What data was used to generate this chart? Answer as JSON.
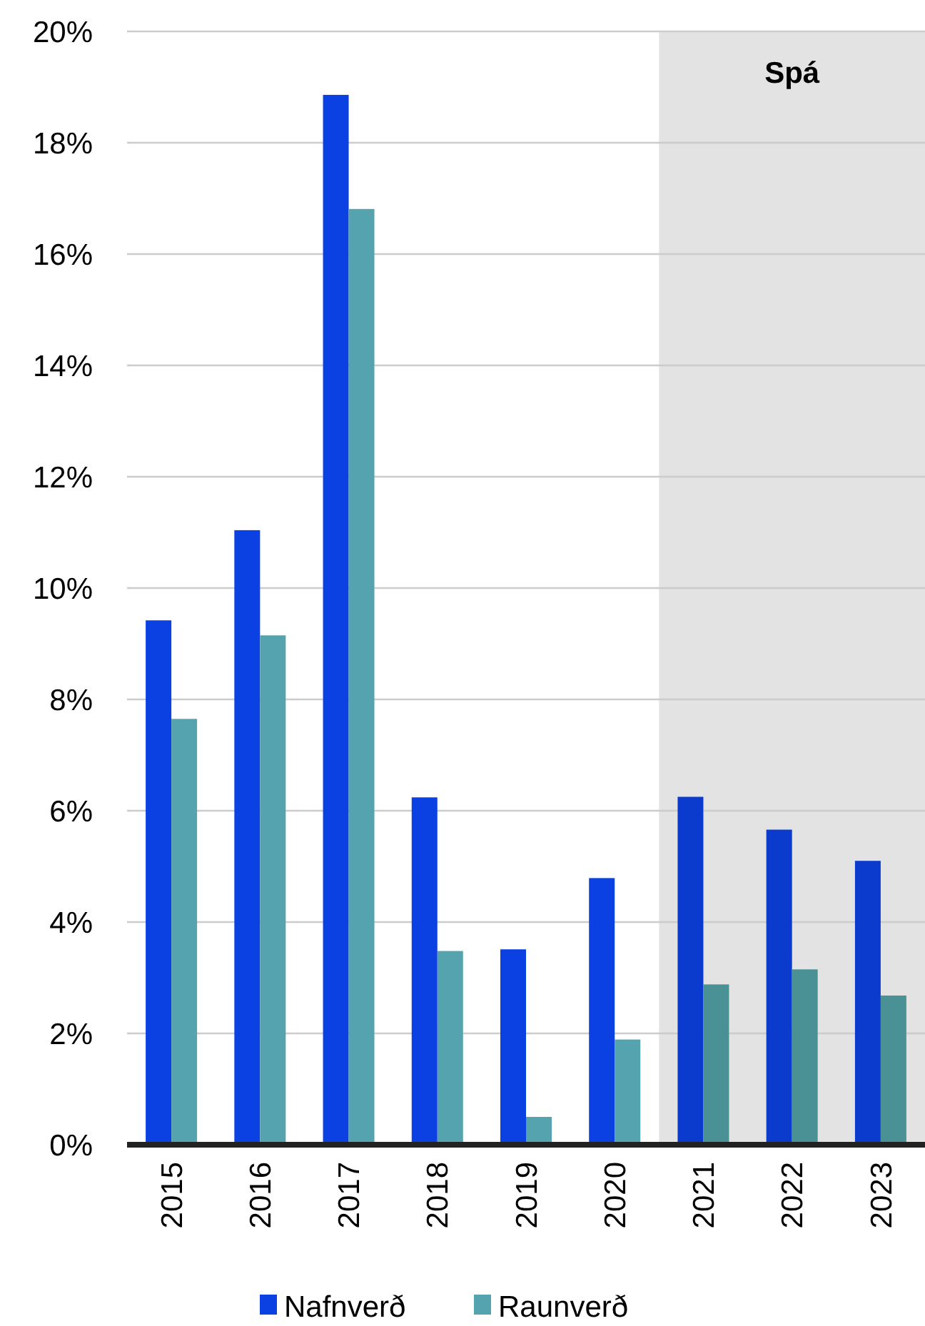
{
  "chart_data": {
    "type": "bar",
    "categories": [
      "2015",
      "2016",
      "2017",
      "2018",
      "2019",
      "2020",
      "2021",
      "2022",
      "2023"
    ],
    "series": [
      {
        "name": "Nafnverð",
        "color": "#0b41e3",
        "colors": [
          "#0b41e3",
          "#0b41e3",
          "#0b41e3",
          "#0b41e3",
          "#0b41e3",
          "#0b41e3",
          "#0a3bcc",
          "#0a3bcc",
          "#0a3bcc"
        ],
        "values": [
          9.42,
          11.04,
          18.86,
          6.24,
          3.51,
          4.79,
          6.25,
          5.66,
          5.1
        ]
      },
      {
        "name": "Raunverð",
        "color": "#55a3ae",
        "colors": [
          "#55a3ae",
          "#55a3ae",
          "#55a3ae",
          "#55a3ae",
          "#55a3ae",
          "#55a3ae",
          "#4a9196",
          "#4a9196",
          "#4a9196"
        ],
        "values": [
          7.65,
          9.15,
          16.81,
          3.48,
          0.5,
          1.89,
          2.88,
          3.15,
          2.68
        ]
      }
    ],
    "ylim": [
      0,
      20
    ],
    "yticks": [
      {
        "value": 0,
        "label": "0%"
      },
      {
        "value": 2,
        "label": "2%"
      },
      {
        "value": 4,
        "label": "4%"
      },
      {
        "value": 6,
        "label": "6%"
      },
      {
        "value": 8,
        "label": "8%"
      },
      {
        "value": 10,
        "label": "10%"
      },
      {
        "value": 12,
        "label": "12%"
      },
      {
        "value": 14,
        "label": "14%"
      },
      {
        "value": 16,
        "label": "16%"
      },
      {
        "value": 18,
        "label": "18%"
      },
      {
        "value": 20,
        "label": "20%"
      }
    ],
    "bands": [
      {
        "axis": "x",
        "from": "2021",
        "to": "2023",
        "label": "Spá",
        "color": "#e3e3e3"
      }
    ],
    "grid": "y",
    "legend": "bottom"
  }
}
